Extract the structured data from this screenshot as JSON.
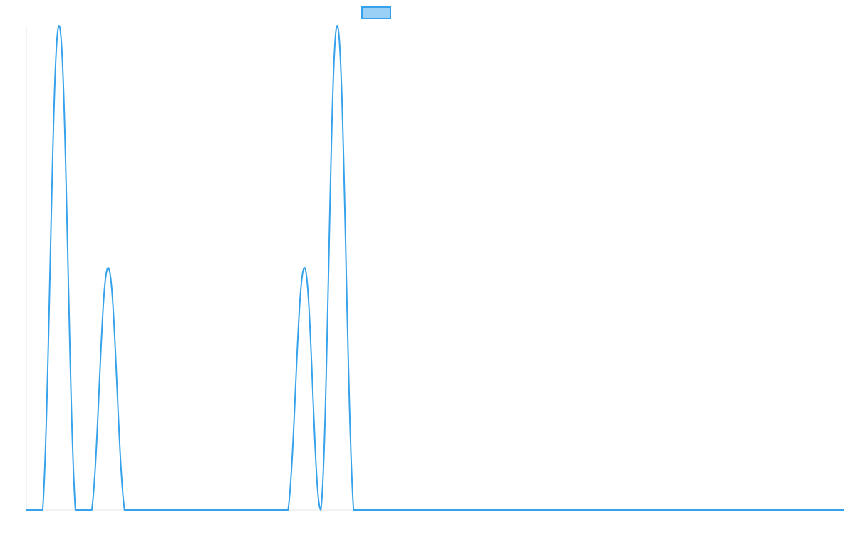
{
  "chart_data": {
    "type": "line",
    "title": "",
    "xlabel": "",
    "ylabel": "",
    "x": [
      0,
      1,
      2,
      3,
      4,
      5,
      6,
      7,
      8,
      9,
      10,
      11,
      12,
      13,
      14,
      15,
      16,
      17,
      18,
      19,
      20,
      21,
      22,
      23,
      24,
      25,
      26,
      27,
      28,
      29,
      30,
      31,
      32,
      33,
      34,
      35,
      36,
      37,
      38,
      39,
      40,
      41,
      42,
      43,
      44,
      45,
      46,
      47,
      48,
      49,
      50
    ],
    "series": [
      {
        "name": "",
        "color": "#36a2eb",
        "fill": "#9ad0f5",
        "values": [
          0,
          0,
          2,
          0,
          0,
          1,
          0,
          0,
          0,
          0,
          0,
          0,
          0,
          0,
          0,
          0,
          0,
          1,
          0,
          2,
          0,
          0,
          0,
          0,
          0,
          0,
          0,
          0,
          0,
          0,
          0,
          0,
          0,
          0,
          0,
          0,
          0,
          0,
          0,
          0,
          0,
          0,
          0,
          0,
          0,
          0,
          0,
          0,
          0,
          0,
          0
        ]
      }
    ],
    "ylim": [
      0,
      2
    ],
    "legend": "top-center",
    "grid": false,
    "smooth": true
  }
}
